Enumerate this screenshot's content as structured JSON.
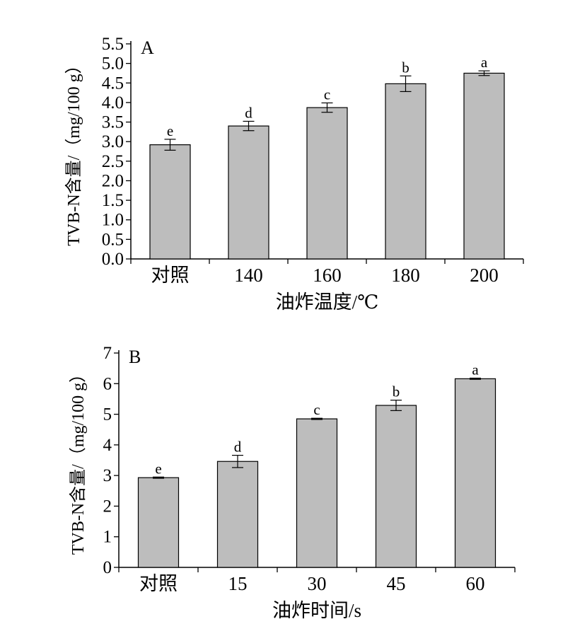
{
  "chart_data": [
    {
      "type": "bar",
      "panel_label": "A",
      "categories": [
        "对照",
        "140",
        "160",
        "180",
        "200"
      ],
      "values": [
        2.92,
        3.4,
        3.87,
        4.48,
        4.75
      ],
      "errors": [
        0.14,
        0.12,
        0.12,
        0.2,
        0.06
      ],
      "letters": [
        "e",
        "d",
        "c",
        "b",
        "a"
      ],
      "xlabel": "油炸温度/℃",
      "ylabel": "TVB-N含量/（mg/100 g）",
      "ylim": [
        0,
        5.5
      ],
      "yticks": [
        "0.0",
        "0.5",
        "1.0",
        "1.5",
        "2.0",
        "2.5",
        "3.0",
        "3.5",
        "4.0",
        "4.5",
        "5.0",
        "5.5"
      ],
      "bar_color": "#bdbdbd",
      "grid": false,
      "legend": "none"
    },
    {
      "type": "bar",
      "panel_label": "B",
      "categories": [
        "对照",
        "15",
        "30",
        "45",
        "60"
      ],
      "values": [
        2.93,
        3.46,
        4.85,
        5.29,
        6.16
      ],
      "errors": [
        0.02,
        0.2,
        0.02,
        0.17,
        0.02
      ],
      "letters": [
        "e",
        "d",
        "c",
        "b",
        "a"
      ],
      "xlabel": "油炸时间/s",
      "ylabel": "TVB-N含量/（mg/100 g）",
      "ylim": [
        0,
        7
      ],
      "yticks": [
        "0",
        "1",
        "2",
        "3",
        "4",
        "5",
        "6",
        "7"
      ],
      "bar_color": "#bdbdbd",
      "grid": false,
      "legend": "none"
    }
  ]
}
